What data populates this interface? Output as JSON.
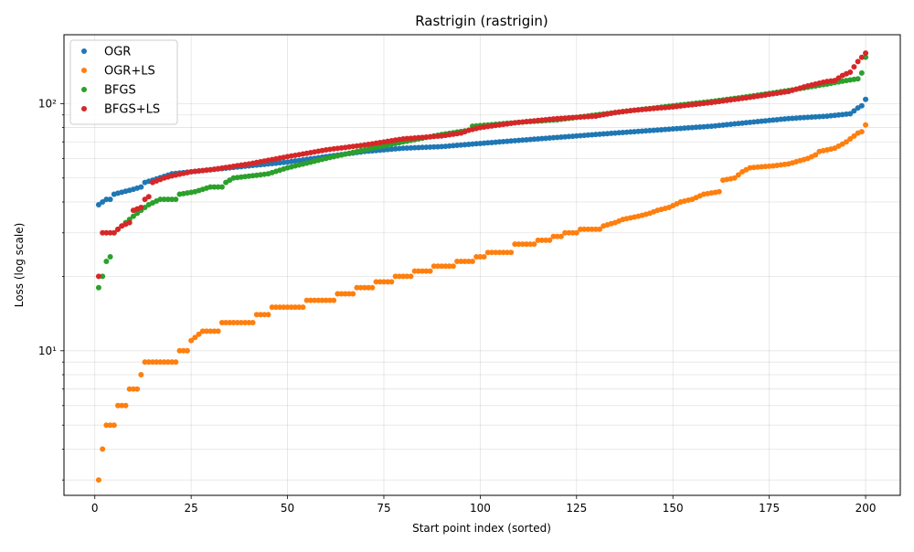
{
  "chart_data": {
    "type": "scatter",
    "title": "Rastrigin (rastrigin)",
    "xlabel": "Start point index (sorted)",
    "ylabel": "Loss (log scale)",
    "yscale": "log",
    "xlim": [
      -8,
      209
    ],
    "ylim": [
      2.6,
      190
    ],
    "grid": true,
    "legend_position": "top-left",
    "x_ticks": [
      0,
      25,
      50,
      75,
      100,
      125,
      150,
      175,
      200
    ],
    "x_tick_labels": [
      "0",
      "25",
      "50",
      "75",
      "100",
      "125",
      "150",
      "175",
      "200"
    ],
    "y_ticks": [
      10,
      100
    ],
    "y_tick_labels": [
      "10¹",
      "10²"
    ],
    "x": {
      "start": 1,
      "end": 200,
      "count": 200
    },
    "series": [
      {
        "name": "OGR",
        "color": "#1f77b4",
        "anchors": [
          [
            1,
            39
          ],
          [
            2,
            40
          ],
          [
            3,
            41
          ],
          [
            4,
            41
          ],
          [
            5,
            43
          ],
          [
            10,
            45
          ],
          [
            12,
            46
          ],
          [
            13,
            48
          ],
          [
            15,
            49
          ],
          [
            20,
            52
          ],
          [
            30,
            54
          ],
          [
            40,
            56
          ],
          [
            50,
            58
          ],
          [
            60,
            61
          ],
          [
            70,
            64
          ],
          [
            80,
            66
          ],
          [
            90,
            67
          ],
          [
            100,
            69
          ],
          [
            110,
            71
          ],
          [
            120,
            73
          ],
          [
            130,
            75
          ],
          [
            140,
            77
          ],
          [
            150,
            79
          ],
          [
            160,
            81
          ],
          [
            170,
            84
          ],
          [
            180,
            87
          ],
          [
            190,
            89
          ],
          [
            196,
            91
          ],
          [
            198,
            96
          ],
          [
            199,
            98
          ],
          [
            200,
            104
          ]
        ]
      },
      {
        "name": "OGR+LS",
        "color": "#ff7f0e",
        "anchors": [
          [
            1,
            3
          ],
          [
            2,
            4
          ],
          [
            3,
            5
          ],
          [
            5,
            5
          ],
          [
            6,
            6
          ],
          [
            8,
            6
          ],
          [
            9,
            7
          ],
          [
            11,
            7
          ],
          [
            12,
            8
          ],
          [
            13,
            9
          ],
          [
            21,
            9
          ],
          [
            22,
            10
          ],
          [
            24,
            10
          ],
          [
            25,
            11
          ],
          [
            28,
            12
          ],
          [
            32,
            12
          ],
          [
            33,
            13
          ],
          [
            41,
            13
          ],
          [
            42,
            14
          ],
          [
            45,
            14
          ],
          [
            46,
            15
          ],
          [
            54,
            15
          ],
          [
            55,
            16
          ],
          [
            62,
            16
          ],
          [
            63,
            17
          ],
          [
            67,
            17
          ],
          [
            68,
            18
          ],
          [
            72,
            18
          ],
          [
            73,
            19
          ],
          [
            77,
            19
          ],
          [
            78,
            20
          ],
          [
            82,
            20
          ],
          [
            83,
            21
          ],
          [
            87,
            21
          ],
          [
            88,
            22
          ],
          [
            93,
            22
          ],
          [
            94,
            23
          ],
          [
            98,
            23
          ],
          [
            99,
            24
          ],
          [
            101,
            24
          ],
          [
            102,
            25
          ],
          [
            108,
            25
          ],
          [
            109,
            27
          ],
          [
            114,
            27
          ],
          [
            115,
            28
          ],
          [
            118,
            28
          ],
          [
            119,
            29
          ],
          [
            121,
            29
          ],
          [
            122,
            30
          ],
          [
            125,
            30
          ],
          [
            126,
            31
          ],
          [
            131,
            31
          ],
          [
            132,
            32
          ],
          [
            135,
            33
          ],
          [
            137,
            34
          ],
          [
            141,
            35
          ],
          [
            144,
            36
          ],
          [
            146,
            37
          ],
          [
            149,
            38
          ],
          [
            152,
            40
          ],
          [
            155,
            41
          ],
          [
            158,
            43
          ],
          [
            162,
            44
          ],
          [
            163,
            49
          ],
          [
            166,
            50
          ],
          [
            168,
            53
          ],
          [
            170,
            55
          ],
          [
            176,
            56
          ],
          [
            180,
            57
          ],
          [
            185,
            60
          ],
          [
            187,
            62
          ],
          [
            188,
            64
          ],
          [
            192,
            66
          ],
          [
            195,
            70
          ],
          [
            198,
            76
          ],
          [
            199,
            77
          ],
          [
            200,
            82
          ]
        ]
      },
      {
        "name": "BFGS",
        "color": "#2ca02c",
        "anchors": [
          [
            1,
            18
          ],
          [
            2,
            20
          ],
          [
            3,
            23
          ],
          [
            4,
            24
          ],
          [
            5,
            30
          ],
          [
            6,
            31
          ],
          [
            8,
            33
          ],
          [
            9,
            34
          ],
          [
            10,
            35
          ],
          [
            12,
            37
          ],
          [
            14,
            39
          ],
          [
            17,
            41
          ],
          [
            21,
            41
          ],
          [
            22,
            43
          ],
          [
            26,
            44
          ],
          [
            30,
            46
          ],
          [
            33,
            46
          ],
          [
            34,
            48
          ],
          [
            36,
            50
          ],
          [
            45,
            52
          ],
          [
            50,
            55
          ],
          [
            60,
            60
          ],
          [
            70,
            65
          ],
          [
            80,
            70
          ],
          [
            90,
            75
          ],
          [
            97,
            78
          ],
          [
            98,
            81
          ],
          [
            110,
            84
          ],
          [
            120,
            86
          ],
          [
            130,
            90
          ],
          [
            140,
            94
          ],
          [
            150,
            98
          ],
          [
            160,
            102
          ],
          [
            170,
            107
          ],
          [
            180,
            113
          ],
          [
            190,
            120
          ],
          [
            195,
            124
          ],
          [
            198,
            126
          ],
          [
            199,
            133
          ],
          [
            200,
            154
          ]
        ]
      },
      {
        "name": "BFGS+LS",
        "color": "#d62728",
        "anchors": [
          [
            1,
            20
          ],
          [
            2,
            30
          ],
          [
            5,
            30
          ],
          [
            6,
            31
          ],
          [
            7,
            32
          ],
          [
            9,
            33
          ],
          [
            10,
            37
          ],
          [
            12,
            38
          ],
          [
            13,
            41
          ],
          [
            14,
            42
          ],
          [
            15,
            48
          ],
          [
            18,
            50
          ],
          [
            20,
            51
          ],
          [
            25,
            53
          ],
          [
            30,
            54
          ],
          [
            40,
            57
          ],
          [
            50,
            61
          ],
          [
            60,
            65
          ],
          [
            70,
            68
          ],
          [
            80,
            72
          ],
          [
            90,
            74
          ],
          [
            95,
            76
          ],
          [
            97,
            78
          ],
          [
            100,
            80
          ],
          [
            110,
            84
          ],
          [
            120,
            87
          ],
          [
            130,
            89
          ],
          [
            135,
            92
          ],
          [
            140,
            94
          ],
          [
            150,
            97
          ],
          [
            160,
            101
          ],
          [
            170,
            106
          ],
          [
            180,
            112
          ],
          [
            185,
            118
          ],
          [
            190,
            123
          ],
          [
            192,
            124
          ],
          [
            194,
            130
          ],
          [
            196,
            134
          ],
          [
            198,
            148
          ],
          [
            200,
            160
          ]
        ]
      }
    ]
  }
}
